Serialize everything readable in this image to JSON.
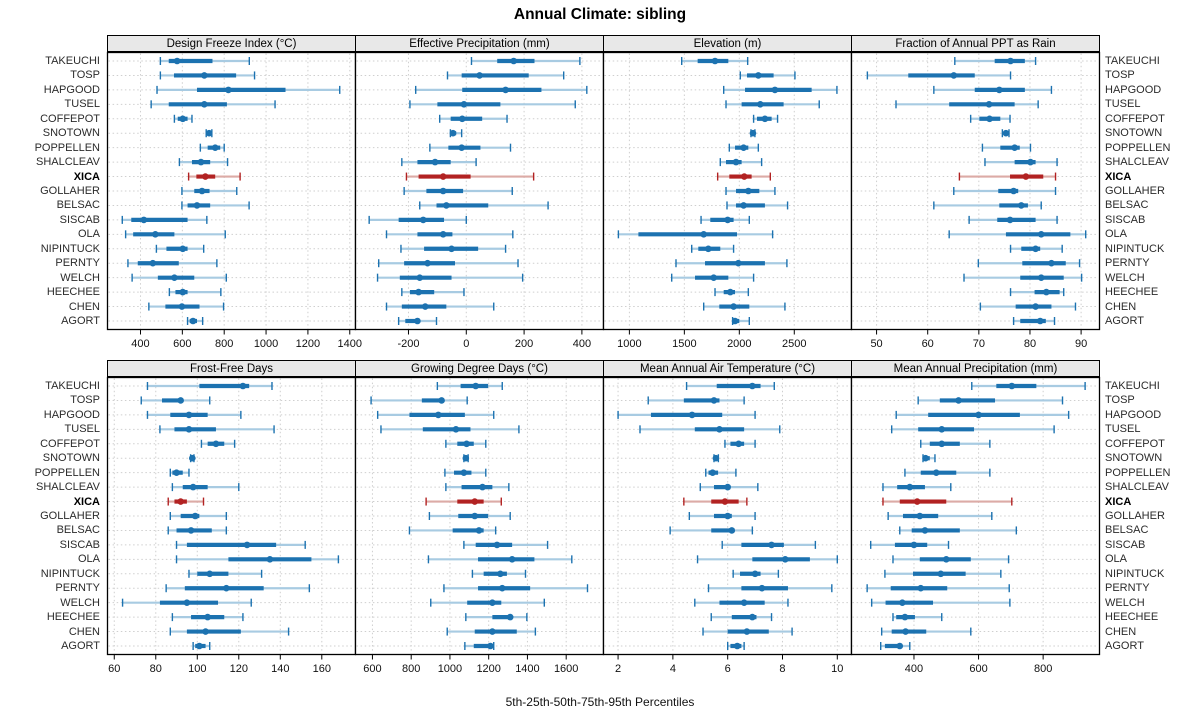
{
  "title": "Annual Climate: sibling",
  "footer": "5th-25th-50th-75th-95th Percentiles",
  "highlight_site": "XICA",
  "sites": [
    "TAKEUCHI",
    "TOSP",
    "HAPGOOD",
    "TUSEL",
    "COFFEPOT",
    "SNOTOWN",
    "POPPELLEN",
    "SHALCLEAV",
    "XICA",
    "GOLLAHER",
    "BELSAC",
    "SISCAB",
    "OLA",
    "NIPINTUCK",
    "PERNTY",
    "WELCH",
    "HEECHEE",
    "CHEN",
    "AGORT"
  ],
  "colors": {
    "series": "#1c72b0",
    "series_light": "#a8cbe2",
    "highlight": "#b22222",
    "highlight_light": "#dcaba6",
    "grid": "#cfcfcf",
    "strip_bg": "#e8e8e8",
    "border": "#000000"
  },
  "chart_data": {
    "type": "interval",
    "orientation": "horizontal",
    "percentiles": [
      5,
      25,
      50,
      75,
      95
    ],
    "legend_note": "one row per site; thin light line = 5th-95th, thick bar = 25th-75th, dot = median",
    "panels": [
      {
        "title": "Design Freeze Index (°C)",
        "xlim": [
          240,
          1425
        ],
        "ticks": [
          400,
          600,
          800,
          1000,
          1200,
          1400
        ],
        "values": [
          [
            495,
            535,
            575,
            744,
            920
          ],
          [
            495,
            560,
            705,
            857,
            945
          ],
          [
            479,
            670,
            820,
            1093,
            1352
          ],
          [
            451,
            535,
            705,
            813,
            1043
          ],
          [
            562,
            578,
            602,
            625,
            646
          ],
          [
            714,
            720,
            728,
            735,
            741
          ],
          [
            686,
            721,
            757,
            781,
            800
          ],
          [
            586,
            646,
            689,
            733,
            816
          ],
          [
            630,
            667,
            710,
            757,
            876
          ],
          [
            598,
            657,
            694,
            730,
            860
          ],
          [
            598,
            625,
            670,
            733,
            919
          ],
          [
            313,
            356,
            416,
            625,
            717
          ],
          [
            329,
            365,
            471,
            562,
            805
          ],
          [
            476,
            524,
            602,
            625,
            702
          ],
          [
            340,
            387,
            459,
            583,
            765
          ],
          [
            360,
            483,
            562,
            657,
            810
          ],
          [
            538,
            567,
            602,
            625,
            784
          ],
          [
            440,
            519,
            598,
            682,
            797
          ],
          [
            625,
            635,
            651,
            670,
            697
          ]
        ]
      },
      {
        "title": "Effective Precipitation (mm)",
        "xlim": [
          -385,
          473
        ],
        "ticks": [
          -200,
          0,
          200,
          400
        ],
        "values": [
          [
            18,
            107,
            164,
            236,
            393
          ],
          [
            -65,
            -16,
            46,
            216,
            337
          ],
          [
            -175,
            -14,
            136,
            260,
            417
          ],
          [
            -195,
            -100,
            -8,
            118,
            377
          ],
          [
            -92,
            -54,
            -14,
            55,
            141
          ],
          [
            -55,
            -51,
            -46,
            -35,
            -16
          ],
          [
            -126,
            -62,
            -16,
            49,
            153
          ],
          [
            -223,
            -169,
            -108,
            -54,
            34
          ],
          [
            -207,
            -165,
            -80,
            15,
            233
          ],
          [
            -215,
            -138,
            -80,
            -11,
            159
          ],
          [
            -161,
            -103,
            -69,
            76,
            283
          ],
          [
            -336,
            -234,
            -149,
            -77,
            0
          ],
          [
            -276,
            -169,
            -80,
            -48,
            161
          ],
          [
            -226,
            -146,
            -51,
            41,
            136
          ],
          [
            -303,
            -215,
            -134,
            -39,
            179
          ],
          [
            -307,
            -230,
            -161,
            -51,
            195
          ],
          [
            -223,
            -195,
            -165,
            -111,
            -8
          ],
          [
            -276,
            -223,
            -142,
            -69,
            95
          ],
          [
            -234,
            -211,
            -169,
            -161,
            -103
          ]
        ]
      },
      {
        "title": "Elevation (m)",
        "xlim": [
          760,
          3016
        ],
        "ticks": [
          1000,
          1500,
          2000,
          2500
        ],
        "values": [
          [
            1476,
            1621,
            1779,
            1900,
            2076
          ],
          [
            2009,
            2070,
            2173,
            2312,
            2506
          ],
          [
            1858,
            2052,
            2324,
            2658,
            2888
          ],
          [
            1879,
            2021,
            2191,
            2403,
            2727
          ],
          [
            2130,
            2161,
            2233,
            2294,
            2348
          ],
          [
            2106,
            2112,
            2124,
            2133,
            2142
          ],
          [
            1909,
            1961,
            2039,
            2082,
            2173
          ],
          [
            1827,
            1879,
            1970,
            2021,
            2203
          ],
          [
            1803,
            1909,
            2045,
            2112,
            2282
          ],
          [
            1879,
            1970,
            2082,
            2182,
            2324
          ],
          [
            1888,
            1970,
            2039,
            2233,
            2439
          ],
          [
            1652,
            1736,
            1894,
            1948,
            2091
          ],
          [
            900,
            1082,
            1676,
            1979,
            2303
          ],
          [
            1567,
            1627,
            1718,
            1827,
            1948
          ],
          [
            1424,
            1688,
            1991,
            2233,
            2433
          ],
          [
            1385,
            1597,
            1767,
            1900,
            2130
          ],
          [
            1779,
            1858,
            1918,
            1961,
            2082
          ],
          [
            1676,
            1818,
            1948,
            2091,
            2415
          ],
          [
            1939,
            1941,
            1961,
            2000,
            2091
          ]
        ]
      },
      {
        "title": "Fraction of Annual PPT as Rain",
        "xlim": [
          45,
          93.5
        ],
        "ticks": [
          50,
          60,
          70,
          80,
          90
        ],
        "values": [
          [
            65.3,
            73.1,
            76.2,
            79.0,
            81.1
          ],
          [
            48.2,
            56.2,
            65.1,
            69.2,
            76.2
          ],
          [
            61.2,
            69.2,
            74.0,
            79.0,
            84.2
          ],
          [
            53.8,
            64.2,
            72.0,
            77.0,
            81.6
          ],
          [
            68.4,
            70.1,
            72.1,
            74.2,
            76.1
          ],
          [
            74.6,
            75.0,
            75.3,
            75.6,
            75.9
          ],
          [
            70.7,
            74.2,
            77.0,
            78.0,
            80.1
          ],
          [
            71.2,
            77.0,
            80.1,
            81.1,
            85.3
          ],
          [
            66.2,
            76.1,
            79.2,
            82.6,
            85.0
          ],
          [
            65.1,
            73.8,
            76.8,
            77.7,
            85.0
          ],
          [
            61.2,
            74.0,
            78.3,
            79.6,
            82.2
          ],
          [
            68.1,
            73.6,
            76.1,
            81.1,
            85.3
          ],
          [
            64.2,
            75.3,
            82.2,
            87.9,
            90.9
          ],
          [
            76.2,
            78.3,
            81.1,
            82.0,
            86.3
          ],
          [
            69.9,
            78.5,
            84.2,
            87.0,
            89.7
          ],
          [
            67.1,
            78.1,
            82.2,
            86.6,
            90.1
          ],
          [
            76.2,
            80.9,
            83.2,
            85.8,
            86.6
          ],
          [
            70.3,
            77.2,
            81.1,
            84.2,
            88.9
          ],
          [
            76.8,
            78.1,
            82.0,
            83.1,
            84.8
          ]
        ]
      },
      {
        "title": "Frost-Free Days",
        "xlim": [
          56.5,
          176
        ],
        "ticks": [
          60,
          80,
          100,
          120,
          140,
          160
        ],
        "values": [
          [
            76,
            101,
            122,
            125,
            136
          ],
          [
            73,
            83,
            92,
            93,
            106
          ],
          [
            76,
            87,
            96,
            105,
            121
          ],
          [
            82,
            89,
            96,
            109,
            137
          ],
          [
            102,
            105,
            109,
            113,
            118
          ],
          [
            96.8,
            97.2,
            97.6,
            98.0,
            98.4
          ],
          [
            87,
            88,
            90,
            93,
            96
          ],
          [
            88,
            93,
            98,
            105,
            120
          ],
          [
            86,
            89,
            92,
            95,
            103
          ],
          [
            87,
            92,
            99,
            101,
            114
          ],
          [
            86,
            90,
            97,
            107,
            114
          ],
          [
            90,
            95,
            124,
            138,
            152
          ],
          [
            90,
            115,
            135,
            155,
            168
          ],
          [
            96,
            100,
            106,
            115,
            131
          ],
          [
            85,
            94,
            114,
            132,
            154
          ],
          [
            64,
            82,
            95,
            110,
            126
          ],
          [
            88,
            97,
            105,
            113,
            122
          ],
          [
            87,
            95,
            104,
            121,
            144
          ],
          [
            98,
            99,
            101,
            104,
            106
          ]
        ]
      },
      {
        "title": "Growing Degree Days (°C)",
        "xlim": [
          510,
          1790
        ],
        "ticks": [
          600,
          800,
          1000,
          1200,
          1400,
          1600
        ],
        "values": [
          [
            935,
            1055,
            1133,
            1197,
            1270
          ],
          [
            593,
            855,
            957,
            969,
            1089
          ],
          [
            627,
            791,
            940,
            1077,
            1226
          ],
          [
            644,
            860,
            1031,
            1106,
            1356
          ],
          [
            979,
            1038,
            1086,
            1123,
            1185
          ],
          [
            1072,
            1077,
            1082,
            1088,
            1094
          ],
          [
            974,
            1021,
            1072,
            1111,
            1185
          ],
          [
            979,
            1060,
            1168,
            1219,
            1304
          ],
          [
            877,
            1038,
            1128,
            1174,
            1265
          ],
          [
            894,
            1043,
            1128,
            1197,
            1311
          ],
          [
            791,
            1014,
            1150,
            1174,
            1236
          ],
          [
            1072,
            1133,
            1243,
            1321,
            1504
          ],
          [
            889,
            1145,
            1321,
            1436,
            1629
          ],
          [
            1116,
            1174,
            1260,
            1294,
            1390
          ],
          [
            969,
            1145,
            1270,
            1414,
            1710
          ],
          [
            901,
            1089,
            1219,
            1265,
            1487
          ],
          [
            1082,
            1219,
            1311,
            1321,
            1397
          ],
          [
            986,
            1128,
            1219,
            1345,
            1441
          ],
          [
            1077,
            1123,
            1209,
            1214,
            1226
          ]
        ]
      },
      {
        "title": "Mean Annual Air Temperature (°C)",
        "xlim": [
          1.45,
          10.5
        ],
        "ticks": [
          2,
          4,
          6,
          8,
          10
        ],
        "values": [
          [
            4.5,
            5.6,
            6.9,
            7.2,
            7.7
          ],
          [
            3.1,
            4.4,
            5.5,
            5.7,
            6.6
          ],
          [
            2.0,
            3.2,
            4.7,
            5.8,
            7.0
          ],
          [
            2.8,
            4.8,
            5.7,
            6.6,
            7.9
          ],
          [
            5.9,
            6.1,
            6.4,
            6.6,
            7.0
          ],
          [
            5.5,
            5.54,
            5.57,
            5.61,
            5.66
          ],
          [
            5.2,
            5.3,
            5.45,
            5.65,
            6.3
          ],
          [
            5.0,
            5.5,
            6.0,
            6.1,
            7.1
          ],
          [
            4.4,
            5.4,
            5.9,
            6.4,
            6.7
          ],
          [
            4.6,
            5.5,
            6.0,
            6.15,
            7.0
          ],
          [
            3.9,
            5.4,
            6.15,
            6.25,
            6.9
          ],
          [
            5.8,
            6.5,
            7.6,
            8.05,
            9.2
          ],
          [
            4.9,
            6.9,
            8.1,
            9.0,
            10.0
          ],
          [
            6.2,
            6.45,
            7.0,
            7.2,
            7.85
          ],
          [
            5.3,
            6.5,
            7.25,
            8.2,
            9.8
          ],
          [
            4.8,
            5.7,
            6.6,
            7.35,
            8.2
          ],
          [
            5.4,
            6.15,
            6.9,
            7.05,
            7.6
          ],
          [
            5.1,
            6.0,
            6.7,
            7.5,
            8.35
          ],
          [
            6.0,
            6.1,
            6.35,
            6.5,
            6.6
          ]
        ]
      },
      {
        "title": "Mean Annual Precipitation (mm)",
        "xlim": [
          205,
          973
        ],
        "ticks": [
          400,
          600,
          800
        ],
        "values": [
          [
            579,
            655,
            703,
            779,
            930
          ],
          [
            413,
            480,
            538,
            651,
            860
          ],
          [
            345,
            444,
            600,
            728,
            879
          ],
          [
            331,
            413,
            486,
            586,
            834
          ],
          [
            421,
            449,
            486,
            542,
            635
          ],
          [
            428,
            430,
            436,
            449,
            465
          ],
          [
            372,
            421,
            469,
            531,
            635
          ],
          [
            304,
            348,
            387,
            434,
            514
          ],
          [
            304,
            356,
            410,
            500,
            703
          ],
          [
            320,
            366,
            418,
            475,
            641
          ],
          [
            356,
            393,
            434,
            542,
            717
          ],
          [
            266,
            341,
            400,
            441,
            507
          ],
          [
            335,
            418,
            500,
            576,
            693
          ],
          [
            310,
            397,
            483,
            560,
            669
          ],
          [
            255,
            328,
            421,
            503,
            695
          ],
          [
            269,
            312,
            364,
            459,
            697
          ],
          [
            335,
            345,
            372,
            403,
            486
          ],
          [
            300,
            331,
            374,
            438,
            576
          ],
          [
            297,
            310,
            356,
            362,
            387
          ]
        ]
      }
    ]
  }
}
